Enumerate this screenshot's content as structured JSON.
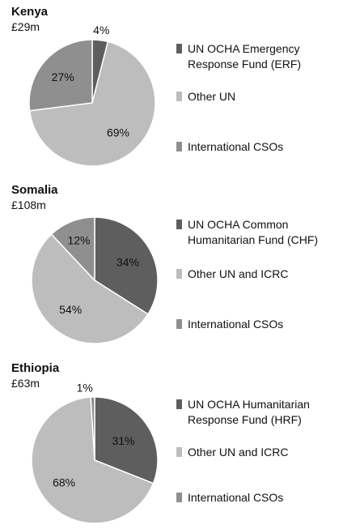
{
  "colors": {
    "dark": "#5e5e5e",
    "light": "#bdbdbd",
    "mid": "#8f8f8f",
    "divider": "#ffffff"
  },
  "chart_data": [
    {
      "type": "pie",
      "title": "Kenya",
      "subtitle": "£29m",
      "slices": [
        {
          "label": "UN OCHA Emergency Response Fund (ERF)",
          "value": 4,
          "value_label": "4%",
          "color": "#5e5e5e"
        },
        {
          "label": "Other UN",
          "value": 69,
          "value_label": "69%",
          "color": "#bdbdbd"
        },
        {
          "label": "International CSOs",
          "value": 27,
          "value_label": "27%",
          "color": "#8f8f8f"
        }
      ],
      "legend": {
        "position": "right"
      }
    },
    {
      "type": "pie",
      "title": "Somalia",
      "subtitle": "£108m",
      "slices": [
        {
          "label": "UN OCHA Common Humanitarian Fund (CHF)",
          "value": 34,
          "value_label": "34%",
          "color": "#5e5e5e"
        },
        {
          "label": "Other UN and ICRC",
          "value": 54,
          "value_label": "54%",
          "color": "#bdbdbd"
        },
        {
          "label": "International CSOs",
          "value": 12,
          "value_label": "12%",
          "color": "#8f8f8f"
        }
      ],
      "legend": {
        "position": "right"
      }
    },
    {
      "type": "pie",
      "title": "Ethiopia",
      "subtitle": "£63m",
      "slices": [
        {
          "label": "UN OCHA Humanitarian Response Fund (HRF)",
          "value": 31,
          "value_label": "31%",
          "color": "#5e5e5e"
        },
        {
          "label": "Other UN and ICRC",
          "value": 68,
          "value_label": "68%",
          "color": "#bdbdbd"
        },
        {
          "label": "International CSOs",
          "value": 1,
          "value_label": "1%",
          "color": "#8f8f8f"
        }
      ],
      "legend": {
        "position": "right"
      }
    }
  ]
}
